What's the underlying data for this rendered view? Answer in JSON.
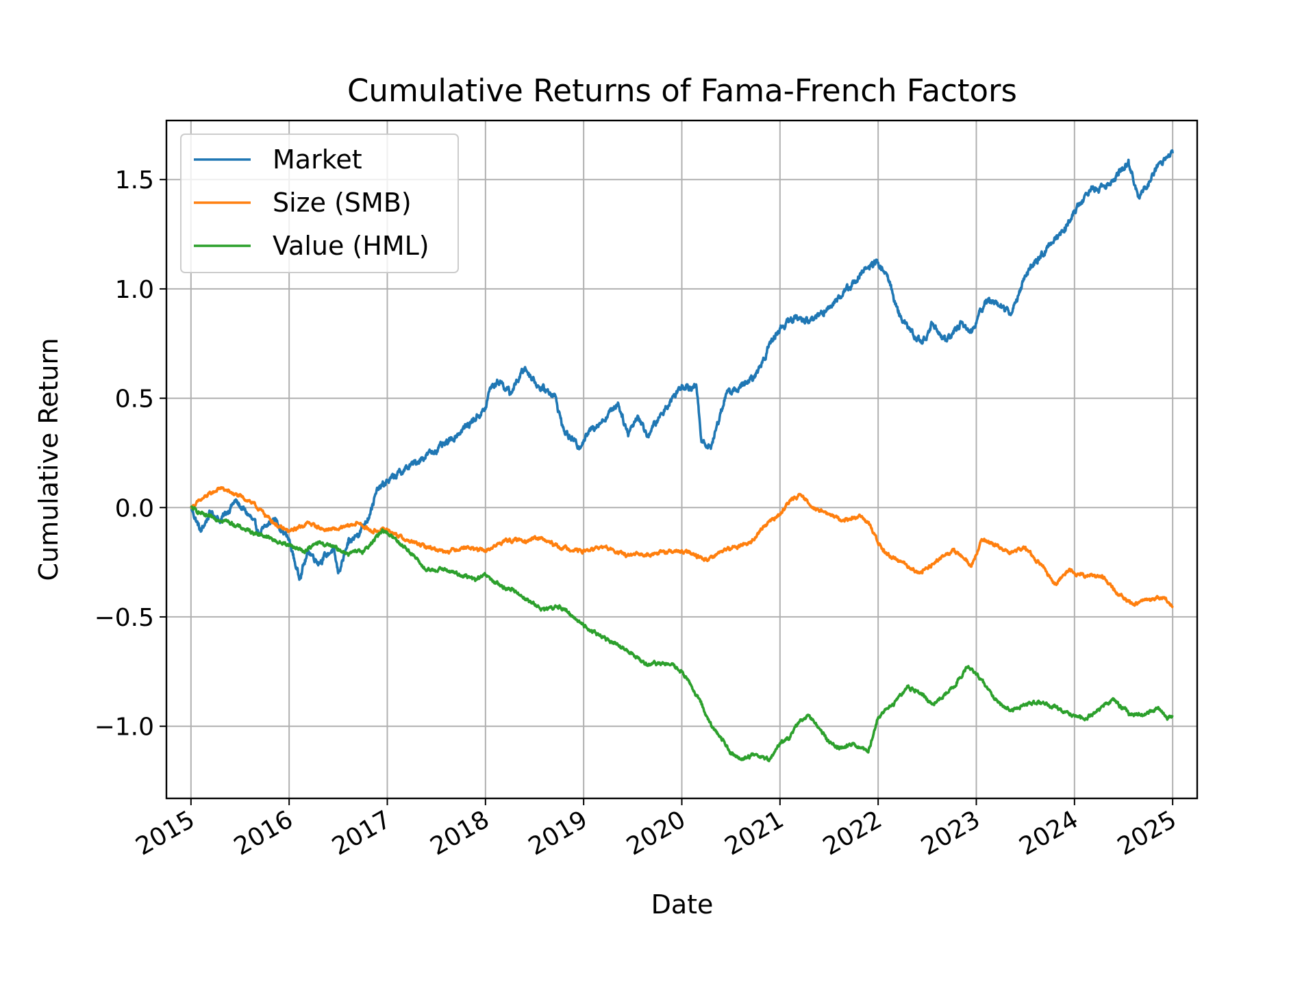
{
  "chart_data": {
    "type": "line",
    "title": "Cumulative Returns of Fama-French Factors",
    "xlabel": "Date",
    "ylabel": "Cumulative Return",
    "xlim": [
      2014.75,
      2025.25
    ],
    "ylim": [
      -1.33,
      1.77
    ],
    "x_ticks": [
      "2015",
      "2016",
      "2017",
      "2018",
      "2019",
      "2020",
      "2021",
      "2022",
      "2023",
      "2024",
      "2025"
    ],
    "y_ticks": [
      1.5,
      1.0,
      0.5,
      0.0,
      -0.5,
      -1.0
    ],
    "y_tick_labels": [
      "1.5",
      "1.0",
      "0.5",
      "0.0",
      "−0.5",
      "−1.0"
    ],
    "grid": true,
    "legend_position": "upper-left",
    "series": [
      {
        "name": "Market",
        "color": "#1f77b4",
        "points": [
          [
            2015.0,
            0.0
          ],
          [
            2015.1,
            -0.11
          ],
          [
            2015.2,
            -0.02
          ],
          [
            2015.3,
            -0.06
          ],
          [
            2015.45,
            0.03
          ],
          [
            2015.6,
            -0.04
          ],
          [
            2015.7,
            -0.12
          ],
          [
            2015.85,
            -0.05
          ],
          [
            2016.0,
            -0.15
          ],
          [
            2016.1,
            -0.32
          ],
          [
            2016.2,
            -0.2
          ],
          [
            2016.3,
            -0.25
          ],
          [
            2016.45,
            -0.19
          ],
          [
            2016.5,
            -0.3
          ],
          [
            2016.6,
            -0.17
          ],
          [
            2016.7,
            -0.12
          ],
          [
            2016.8,
            -0.05
          ],
          [
            2016.9,
            0.08
          ],
          [
            2017.0,
            0.12
          ],
          [
            2017.2,
            0.18
          ],
          [
            2017.4,
            0.24
          ],
          [
            2017.6,
            0.29
          ],
          [
            2017.8,
            0.37
          ],
          [
            2018.0,
            0.45
          ],
          [
            2018.05,
            0.55
          ],
          [
            2018.15,
            0.58
          ],
          [
            2018.25,
            0.52
          ],
          [
            2018.4,
            0.64
          ],
          [
            2018.55,
            0.55
          ],
          [
            2018.7,
            0.52
          ],
          [
            2018.8,
            0.35
          ],
          [
            2018.95,
            0.28
          ],
          [
            2019.1,
            0.37
          ],
          [
            2019.2,
            0.4
          ],
          [
            2019.35,
            0.48
          ],
          [
            2019.45,
            0.34
          ],
          [
            2019.55,
            0.42
          ],
          [
            2019.65,
            0.33
          ],
          [
            2019.8,
            0.43
          ],
          [
            2019.9,
            0.5
          ],
          [
            2020.0,
            0.56
          ],
          [
            2020.15,
            0.55
          ],
          [
            2020.2,
            0.3
          ],
          [
            2020.3,
            0.28
          ],
          [
            2020.45,
            0.52
          ],
          [
            2020.6,
            0.55
          ],
          [
            2020.75,
            0.6
          ],
          [
            2020.9,
            0.75
          ],
          [
            2021.0,
            0.82
          ],
          [
            2021.15,
            0.87
          ],
          [
            2021.3,
            0.85
          ],
          [
            2021.45,
            0.9
          ],
          [
            2021.6,
            0.96
          ],
          [
            2021.75,
            1.03
          ],
          [
            2021.9,
            1.1
          ],
          [
            2022.0,
            1.12
          ],
          [
            2022.1,
            1.05
          ],
          [
            2022.2,
            0.9
          ],
          [
            2022.3,
            0.82
          ],
          [
            2022.45,
            0.75
          ],
          [
            2022.55,
            0.84
          ],
          [
            2022.7,
            0.76
          ],
          [
            2022.85,
            0.85
          ],
          [
            2022.95,
            0.8
          ],
          [
            2023.1,
            0.95
          ],
          [
            2023.25,
            0.93
          ],
          [
            2023.35,
            0.88
          ],
          [
            2023.5,
            1.06
          ],
          [
            2023.6,
            1.12
          ],
          [
            2023.75,
            1.2
          ],
          [
            2023.9,
            1.28
          ],
          [
            2024.0,
            1.35
          ],
          [
            2024.15,
            1.45
          ],
          [
            2024.3,
            1.47
          ],
          [
            2024.45,
            1.52
          ],
          [
            2024.55,
            1.59
          ],
          [
            2024.65,
            1.42
          ],
          [
            2024.75,
            1.48
          ],
          [
            2024.85,
            1.57
          ],
          [
            2025.0,
            1.62
          ]
        ]
      },
      {
        "name": "Size (SMB)",
        "color": "#ff7f0e",
        "points": [
          [
            2015.0,
            0.0
          ],
          [
            2015.15,
            0.05
          ],
          [
            2015.3,
            0.09
          ],
          [
            2015.45,
            0.06
          ],
          [
            2015.6,
            0.03
          ],
          [
            2015.75,
            -0.03
          ],
          [
            2015.9,
            -0.09
          ],
          [
            2016.0,
            -0.11
          ],
          [
            2016.2,
            -0.07
          ],
          [
            2016.35,
            -0.1
          ],
          [
            2016.5,
            -0.1
          ],
          [
            2016.7,
            -0.07
          ],
          [
            2016.85,
            -0.11
          ],
          [
            2017.0,
            -0.1
          ],
          [
            2017.2,
            -0.15
          ],
          [
            2017.4,
            -0.18
          ],
          [
            2017.6,
            -0.2
          ],
          [
            2017.8,
            -0.18
          ],
          [
            2018.0,
            -0.2
          ],
          [
            2018.2,
            -0.15
          ],
          [
            2018.4,
            -0.15
          ],
          [
            2018.55,
            -0.14
          ],
          [
            2018.75,
            -0.18
          ],
          [
            2019.0,
            -0.2
          ],
          [
            2019.2,
            -0.18
          ],
          [
            2019.45,
            -0.22
          ],
          [
            2019.7,
            -0.21
          ],
          [
            2019.95,
            -0.2
          ],
          [
            2020.1,
            -0.21
          ],
          [
            2020.25,
            -0.24
          ],
          [
            2020.4,
            -0.2
          ],
          [
            2020.55,
            -0.18
          ],
          [
            2020.7,
            -0.16
          ],
          [
            2020.85,
            -0.08
          ],
          [
            2021.0,
            -0.03
          ],
          [
            2021.1,
            0.03
          ],
          [
            2021.2,
            0.06
          ],
          [
            2021.35,
            0.0
          ],
          [
            2021.5,
            -0.03
          ],
          [
            2021.65,
            -0.06
          ],
          [
            2021.8,
            -0.04
          ],
          [
            2021.9,
            -0.07
          ],
          [
            2022.05,
            -0.2
          ],
          [
            2022.2,
            -0.24
          ],
          [
            2022.35,
            -0.28
          ],
          [
            2022.45,
            -0.3
          ],
          [
            2022.6,
            -0.24
          ],
          [
            2022.75,
            -0.2
          ],
          [
            2022.85,
            -0.22
          ],
          [
            2022.95,
            -0.27
          ],
          [
            2023.05,
            -0.15
          ],
          [
            2023.2,
            -0.17
          ],
          [
            2023.35,
            -0.21
          ],
          [
            2023.5,
            -0.18
          ],
          [
            2023.65,
            -0.26
          ],
          [
            2023.8,
            -0.35
          ],
          [
            2023.95,
            -0.28
          ],
          [
            2024.0,
            -0.3
          ],
          [
            2024.15,
            -0.31
          ],
          [
            2024.3,
            -0.32
          ],
          [
            2024.45,
            -0.4
          ],
          [
            2024.6,
            -0.44
          ],
          [
            2024.75,
            -0.42
          ],
          [
            2024.9,
            -0.41
          ],
          [
            2025.0,
            -0.45
          ]
        ]
      },
      {
        "name": "Value (HML)",
        "color": "#2ca02c",
        "points": [
          [
            2015.0,
            0.0
          ],
          [
            2015.15,
            -0.04
          ],
          [
            2015.35,
            -0.06
          ],
          [
            2015.55,
            -0.1
          ],
          [
            2015.75,
            -0.13
          ],
          [
            2015.9,
            -0.16
          ],
          [
            2016.0,
            -0.17
          ],
          [
            2016.15,
            -0.2
          ],
          [
            2016.3,
            -0.16
          ],
          [
            2016.45,
            -0.18
          ],
          [
            2016.6,
            -0.21
          ],
          [
            2016.75,
            -0.2
          ],
          [
            2016.85,
            -0.16
          ],
          [
            2016.95,
            -0.1
          ],
          [
            2017.1,
            -0.15
          ],
          [
            2017.25,
            -0.21
          ],
          [
            2017.4,
            -0.29
          ],
          [
            2017.55,
            -0.28
          ],
          [
            2017.7,
            -0.3
          ],
          [
            2017.9,
            -0.33
          ],
          [
            2018.0,
            -0.31
          ],
          [
            2018.15,
            -0.36
          ],
          [
            2018.3,
            -0.38
          ],
          [
            2018.45,
            -0.43
          ],
          [
            2018.6,
            -0.47
          ],
          [
            2018.75,
            -0.45
          ],
          [
            2018.9,
            -0.5
          ],
          [
            2019.0,
            -0.54
          ],
          [
            2019.15,
            -0.58
          ],
          [
            2019.3,
            -0.62
          ],
          [
            2019.5,
            -0.67
          ],
          [
            2019.65,
            -0.72
          ],
          [
            2019.8,
            -0.71
          ],
          [
            2019.95,
            -0.73
          ],
          [
            2020.05,
            -0.78
          ],
          [
            2020.2,
            -0.9
          ],
          [
            2020.3,
            -1.0
          ],
          [
            2020.4,
            -1.05
          ],
          [
            2020.5,
            -1.12
          ],
          [
            2020.6,
            -1.15
          ],
          [
            2020.75,
            -1.13
          ],
          [
            2020.9,
            -1.15
          ],
          [
            2021.0,
            -1.08
          ],
          [
            2021.1,
            -1.05
          ],
          [
            2021.2,
            -0.98
          ],
          [
            2021.3,
            -0.95
          ],
          [
            2021.4,
            -1.01
          ],
          [
            2021.5,
            -1.07
          ],
          [
            2021.6,
            -1.1
          ],
          [
            2021.75,
            -1.08
          ],
          [
            2021.9,
            -1.12
          ],
          [
            2022.0,
            -0.96
          ],
          [
            2022.15,
            -0.9
          ],
          [
            2022.3,
            -0.82
          ],
          [
            2022.45,
            -0.85
          ],
          [
            2022.55,
            -0.9
          ],
          [
            2022.7,
            -0.85
          ],
          [
            2022.8,
            -0.8
          ],
          [
            2022.9,
            -0.73
          ],
          [
            2023.0,
            -0.76
          ],
          [
            2023.1,
            -0.82
          ],
          [
            2023.2,
            -0.88
          ],
          [
            2023.35,
            -0.93
          ],
          [
            2023.5,
            -0.9
          ],
          [
            2023.65,
            -0.89
          ],
          [
            2023.8,
            -0.91
          ],
          [
            2023.95,
            -0.95
          ],
          [
            2024.1,
            -0.97
          ],
          [
            2024.25,
            -0.92
          ],
          [
            2024.4,
            -0.88
          ],
          [
            2024.55,
            -0.94
          ],
          [
            2024.7,
            -0.95
          ],
          [
            2024.85,
            -0.92
          ],
          [
            2024.95,
            -0.96
          ],
          [
            2025.0,
            -0.95
          ]
        ]
      }
    ]
  }
}
